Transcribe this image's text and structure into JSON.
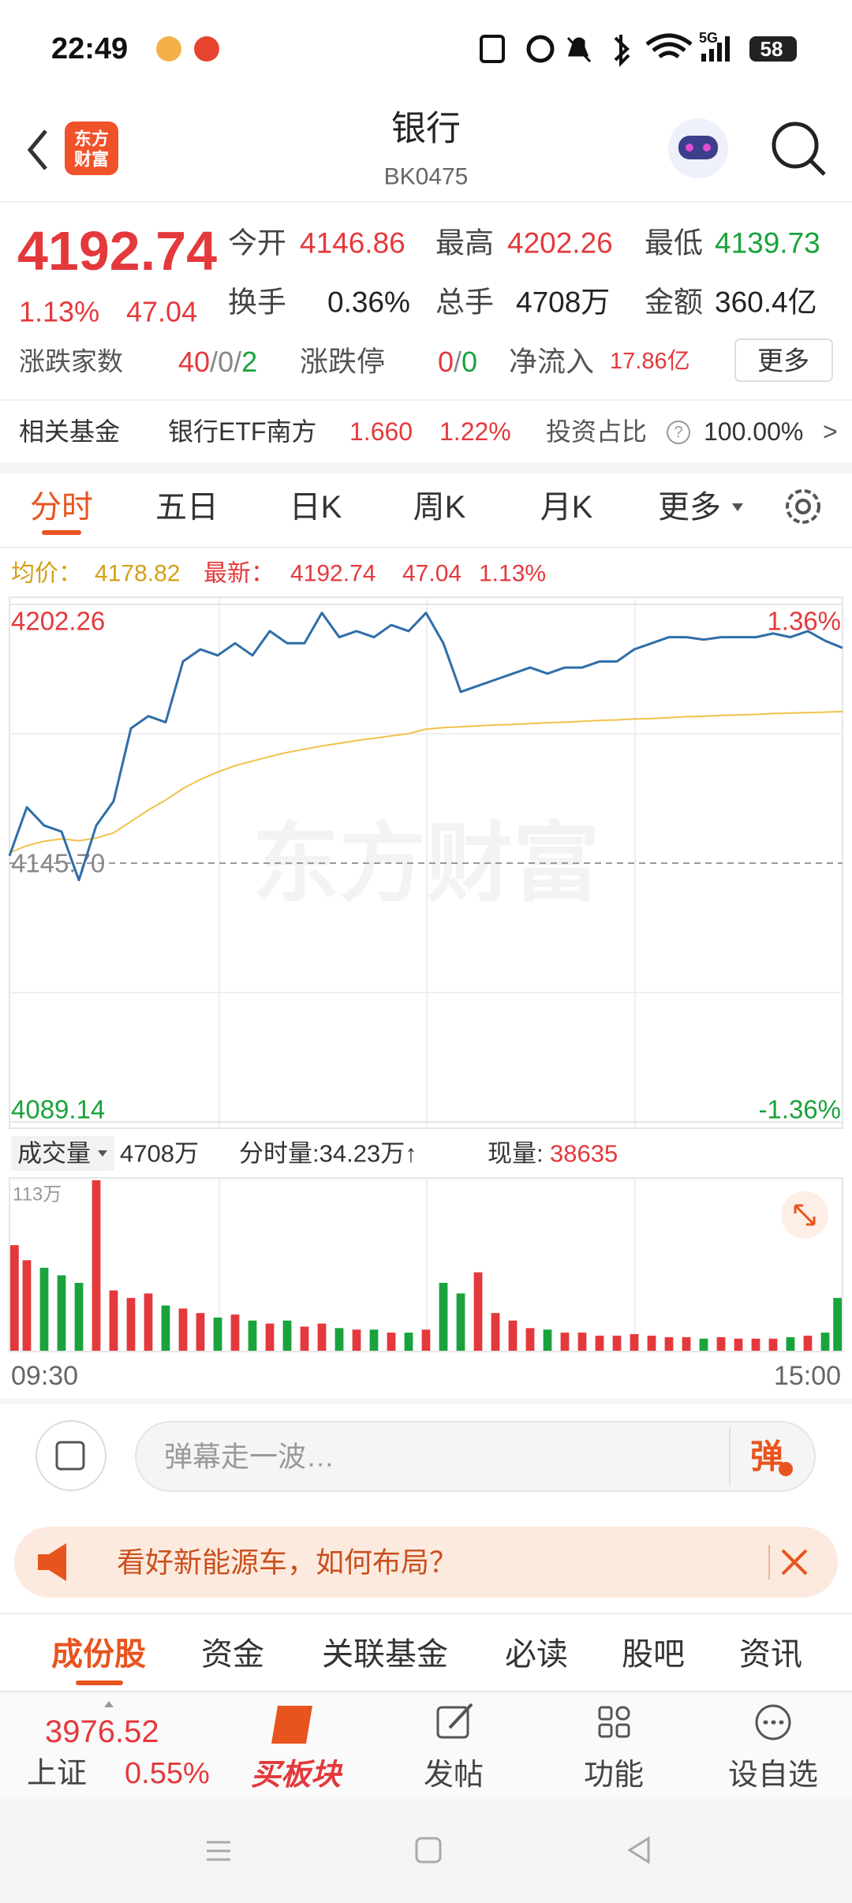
{
  "status_bar": {
    "time": "22:49",
    "network": "5G",
    "battery": "58"
  },
  "header": {
    "logo": [
      "东方",
      "财富"
    ],
    "title": "银行",
    "code": "BK0475"
  },
  "quote": {
    "price": "4192.74",
    "change_pct": "1.13%",
    "change": "47.04",
    "stats": [
      {
        "label": "今开",
        "value": "4146.86"
      },
      {
        "label": "最高",
        "value": "4202.26"
      },
      {
        "label": "最低",
        "value": "4139.73"
      },
      {
        "label": "换手",
        "value": "0.36%"
      },
      {
        "label": "总手",
        "value": "4708万"
      },
      {
        "label": "金额",
        "value": "360.4亿"
      }
    ],
    "breadth": {
      "label": "涨跌家数",
      "parts": [
        "40",
        "/",
        "0",
        "/",
        "2"
      ]
    },
    "limit": {
      "label": "涨跌停",
      "parts": [
        "0",
        "/",
        "0"
      ]
    },
    "net_inflow": {
      "label": "净流入",
      "value": "17.86亿"
    },
    "more_button": "更多"
  },
  "fund": {
    "label": "相关基金",
    "name": "银行ETF南方",
    "price": "1.660",
    "change": "1.22%",
    "ratio_label": "投资占比",
    "help": "?",
    "ratio": "100.00%",
    "arrow": ">"
  },
  "tabs": [
    "分时",
    "五日",
    "日K",
    "周K",
    "月K",
    "更多"
  ],
  "info_line": {
    "avg_label": "均价：",
    "avg": "4178.82",
    "last_label": "最新：",
    "last": "4192.74",
    "change": "47.04",
    "change_pct": "1.13%"
  },
  "watermark": "东方财富",
  "chart_data": [
    {
      "type": "line",
      "xlim": [
        0,
        48
      ],
      "ylim": [
        4089.14,
        4202.26
      ],
      "yticks": [
        4202.26,
        {
          "value": 4145.7,
          "label": "4145.70"
        },
        4089.14
      ],
      "y2lim": [
        -1.36,
        1.36
      ],
      "y2ticks": [
        {
          "value": 1.36,
          "label": "1.36%"
        },
        {
          "value": -1.36,
          "label": "-1.36%"
        }
      ],
      "grid": true,
      "series": [
        {
          "color": "#2f6ea8",
          "values": [
            4147.29,
            4157.91,
            4153.93,
            4152.6,
            4141.98,
            4153.93,
            4159.24,
            4175.17,
            4177.83,
            4176.5,
            4189.78,
            4192.43,
            4191.11,
            4193.76,
            4191.11,
            4196.42,
            4193.76,
            4193.76,
            4200.4,
            4195.09,
            4196.42,
            4195.09,
            4197.75,
            4196.42,
            4200.4,
            4193.76,
            4183.14,
            4184.47,
            4185.8,
            4187.12,
            4188.45,
            4187.12,
            4188.45,
            4188.45,
            4189.78,
            4189.78,
            4192.43,
            4193.76,
            4195.09,
            4195.09,
            4194.56,
            4195.09,
            4195.09,
            4195.09,
            4195.89,
            4195.09,
            4196.42,
            4194.29,
            4192.74
          ]
        },
        {
          "color": "#f0c24a",
          "values": [
            4148.0,
            4149.5,
            4150.5,
            4151.0,
            4150.6,
            4151.2,
            4152.3,
            4154.8,
            4157.3,
            4159.5,
            4162.0,
            4164.0,
            4165.6,
            4167.0,
            4168.0,
            4169.0,
            4169.9,
            4170.6,
            4171.3,
            4171.9,
            4172.5,
            4173.0,
            4173.5,
            4174.0,
            4175.0,
            4175.3,
            4175.5,
            4175.7,
            4175.9,
            4176.0,
            4176.2,
            4176.4,
            4176.5,
            4176.7,
            4176.9,
            4177.0,
            4177.2,
            4177.3,
            4177.5,
            4177.7,
            4177.8,
            4178.0,
            4178.1,
            4178.2,
            4178.4,
            4178.5,
            4178.6,
            4178.7,
            4178.82
          ]
        }
      ]
    },
    {
      "type": "bar",
      "xlim": [
        0,
        48
      ],
      "ylim": [
        0,
        113
      ],
      "yticks": [
        {
          "value": 113,
          "label": "113万"
        }
      ],
      "xticks": [
        {
          "value": 0,
          "label": "09:30"
        },
        {
          "value": 48,
          "label": "15:00"
        }
      ],
      "up_color": "#e4393c",
      "down_color": "#1aa33c",
      "values": [
        70,
        60,
        55,
        50,
        45,
        113,
        40,
        35,
        38,
        30,
        28,
        25,
        22,
        24,
        20,
        18,
        20,
        16,
        18,
        15,
        14,
        14,
        12,
        12,
        14,
        45,
        38,
        52,
        25,
        20,
        15,
        14,
        12,
        12,
        10,
        10,
        11,
        10,
        9,
        9,
        8,
        9,
        8,
        8,
        8,
        9,
        10,
        12,
        35
      ]
    }
  ],
  "volume_header": {
    "selector": "成交量",
    "total": "4708万",
    "interval": "分时量:34.23万↑",
    "current_label": "现量:",
    "current": "38635"
  },
  "danmu": {
    "placeholder": "弹幕走一波…",
    "button": "弹"
  },
  "banner": {
    "text": "看好新能源车，如何布局？"
  },
  "section_tabs": [
    "成份股",
    "资金",
    "关联基金",
    "必读",
    "股吧",
    "资讯"
  ],
  "bottom_bar": {
    "index_value": "3976.52",
    "index_name": "上证",
    "index_change": "0.55%",
    "items": [
      "买板块",
      "发帖",
      "功能",
      "设自选"
    ]
  }
}
